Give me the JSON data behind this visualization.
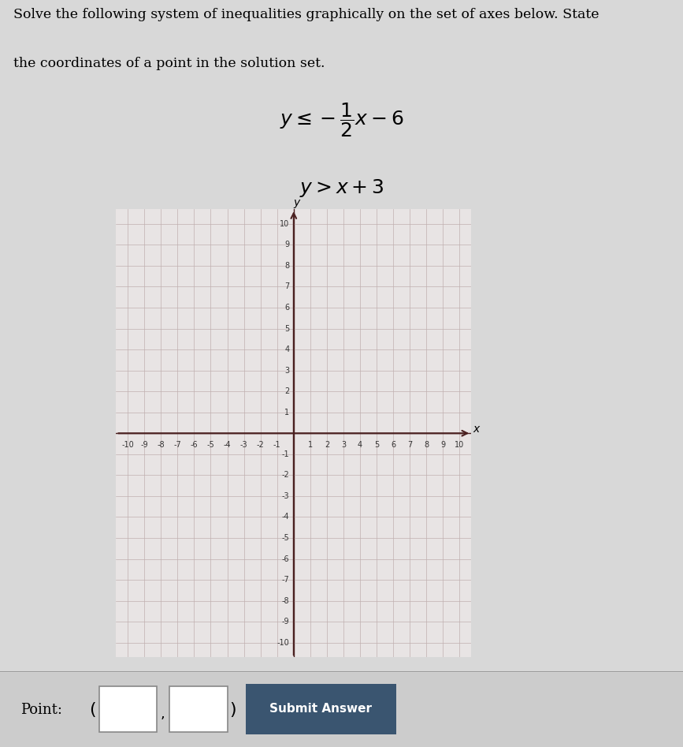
{
  "title_line1": "Solve the following system of inequalities graphically on the set of axes below. State",
  "title_line2": "the coordinates of a point in the solution set.",
  "xlim": [
    -10,
    10
  ],
  "ylim": [
    -10,
    10
  ],
  "background_color": "#d8d8d8",
  "grid_bg_color": "#e8e4e4",
  "grid_color": "#c0b0b0",
  "axis_color": "#4a2020",
  "tick_color": "#333333",
  "point_label": "Point:",
  "submit_label": "Submit Answer",
  "submit_bg": "#3a5570",
  "submit_fg": "#ffffff"
}
